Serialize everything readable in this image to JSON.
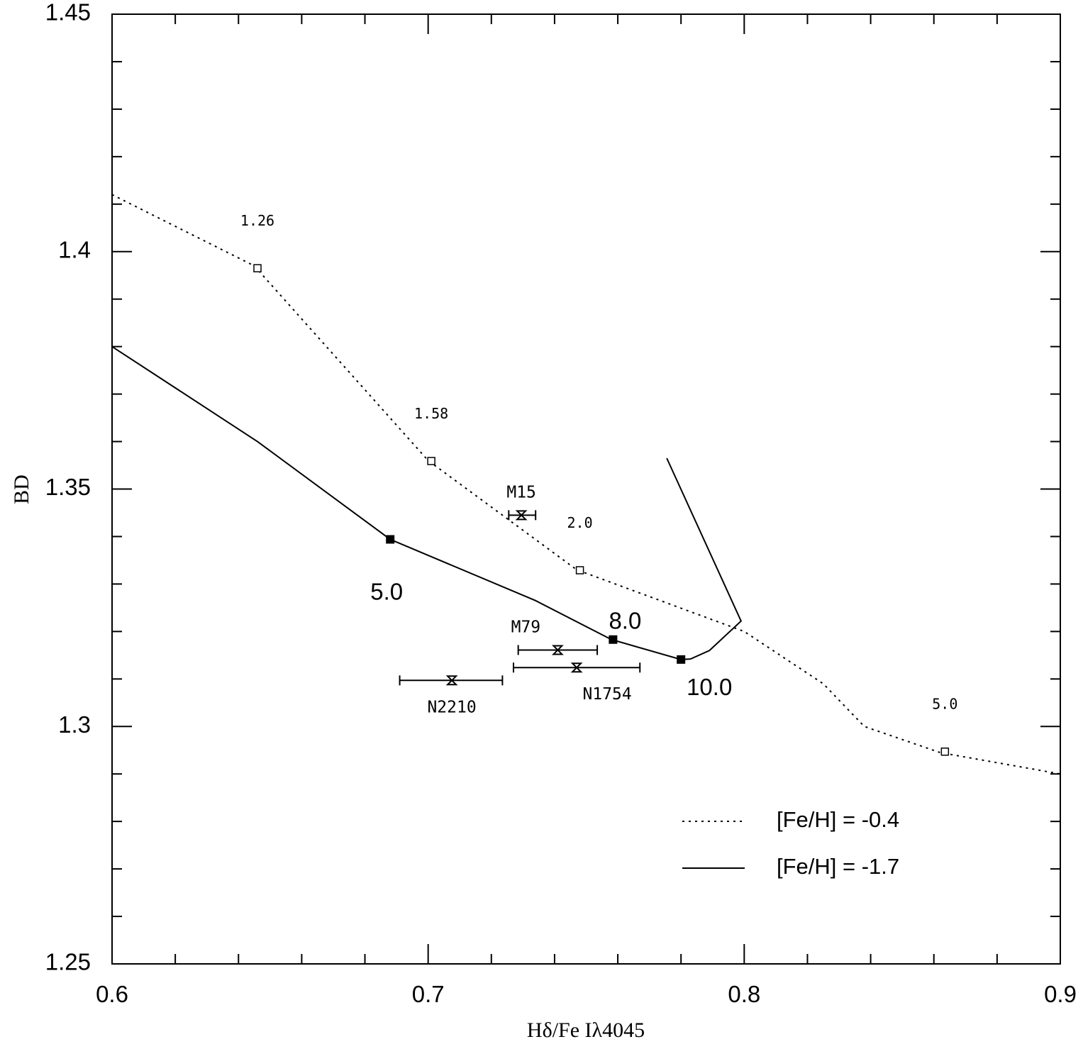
{
  "chart_data": {
    "type": "line",
    "title": "",
    "xlabel": "Hδ/Fe Iλ4045",
    "ylabel": "BD",
    "xlim": [
      0.6,
      0.9
    ],
    "ylim": [
      1.25,
      1.45
    ],
    "x_ticks": [
      "0.6",
      "0.7",
      "0.8",
      "0.9"
    ],
    "y_ticks": [
      "1.25",
      "1.3",
      "1.35",
      "1.4",
      "1.45"
    ],
    "grid": false,
    "legend_position": "bottom-right",
    "series": [
      {
        "name": "[Fe/H] = -0.4",
        "style": "dotted",
        "x": [
          0.6,
          0.645,
          0.7,
          0.747,
          0.8,
          0.825,
          0.838,
          0.862,
          0.9
        ],
        "y": [
          1.412,
          1.397,
          1.356,
          1.333,
          1.32,
          1.309,
          1.3,
          1.2945,
          1.29
        ],
        "markers": [
          {
            "x": 0.646,
            "y": 1.3965,
            "label": "1.26"
          },
          {
            "x": 0.701,
            "y": 1.3559,
            "label": "1.58"
          },
          {
            "x": 0.748,
            "y": 1.3329,
            "label": "2.0"
          },
          {
            "x": 0.8635,
            "y": 1.2947,
            "label": "5.0"
          }
        ]
      },
      {
        "name": "[Fe/H] = -1.7",
        "style": "solid",
        "x": [
          0.6,
          0.646,
          0.688,
          0.734,
          0.758,
          0.78,
          0.783,
          0.789,
          0.799,
          0.7755
        ],
        "y": [
          1.38,
          1.36,
          1.3394,
          1.3265,
          1.3183,
          1.3141,
          1.3142,
          1.316,
          1.3222,
          1.3565
        ],
        "markers": [
          {
            "x": 0.688,
            "y": 1.3394,
            "label": "5.0"
          },
          {
            "x": 0.7585,
            "y": 1.3183,
            "label": "8.0"
          },
          {
            "x": 0.78,
            "y": 1.3141,
            "label": "10.0"
          }
        ]
      }
    ],
    "clusters": [
      {
        "name": "M15",
        "x": 0.7295,
        "y": 1.3445,
        "xerr_low": 0.7255,
        "xerr_high": 0.734
      },
      {
        "name": "M79",
        "x": 0.741,
        "y": 1.3161,
        "xerr_low": 0.7285,
        "xerr_high": 0.7535
      },
      {
        "name": "N1754",
        "x": 0.747,
        "y": 1.3124,
        "xerr_low": 0.727,
        "xerr_high": 0.767
      },
      {
        "name": "N2210",
        "x": 0.7075,
        "y": 1.3097,
        "xerr_low": 0.691,
        "xerr_high": 0.7235
      }
    ],
    "colors": {
      "line": "#000000",
      "background": "#ffffff"
    }
  }
}
